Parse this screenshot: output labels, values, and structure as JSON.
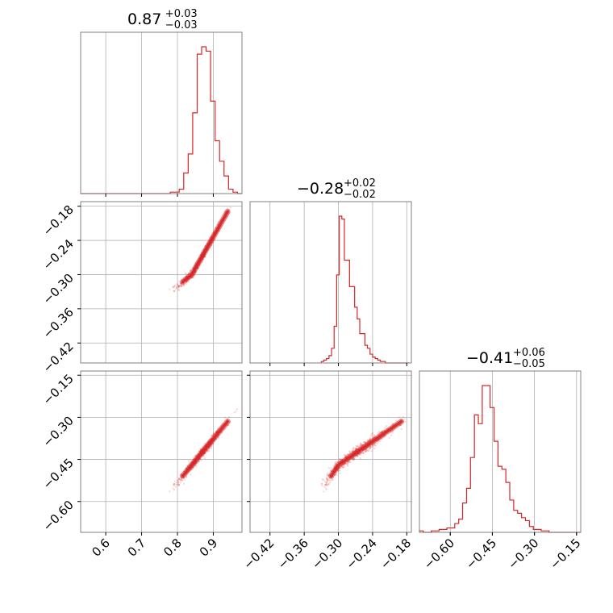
{
  "colors": {
    "series": "#d62728",
    "grid": "#b0b0b0",
    "frame": "#808080",
    "background": "#ffffff"
  },
  "chart_data": {
    "type": "corner",
    "parameters": [
      {
        "title_main": "0.87",
        "title_plus": "+0.03",
        "title_minus": "−0.03",
        "range": [
          0.53,
          0.98
        ],
        "ticks": [
          0.6,
          0.7,
          0.8,
          0.9
        ],
        "tick_labels": [
          "0.6",
          "0.7",
          "0.8",
          "0.9"
        ],
        "hist_bins": [
          0.53,
          0.5425,
          0.555,
          0.5675,
          0.58,
          0.5925,
          0.605,
          0.6175,
          0.63,
          0.6425,
          0.655,
          0.6675,
          0.68,
          0.6925,
          0.705,
          0.7175,
          0.73,
          0.7425,
          0.755,
          0.7675,
          0.78,
          0.7925,
          0.805,
          0.8175,
          0.83,
          0.8425,
          0.855,
          0.8675,
          0.88,
          0.8925,
          0.905,
          0.9175,
          0.93,
          0.9425,
          0.955,
          0.9675,
          0.98
        ],
        "hist_counts": [
          0,
          0,
          0,
          0,
          0,
          0,
          0,
          0,
          0,
          0,
          0,
          0,
          0,
          0,
          0,
          0,
          0,
          0,
          0,
          0,
          1,
          1,
          3,
          14,
          27,
          55,
          95,
          100,
          97,
          63,
          36,
          22,
          12,
          3,
          1,
          0
        ]
      },
      {
        "title_main": "−0.28",
        "title_plus": "+0.02",
        "title_minus": "−0.02",
        "range": [
          -0.455,
          -0.172
        ],
        "ticks": [
          -0.42,
          -0.36,
          -0.3,
          -0.24,
          -0.18
        ],
        "tick_labels": [
          "−0.42",
          "−0.36",
          "−0.30",
          "−0.24",
          "−0.18"
        ],
        "hist_bins": [
          -0.33,
          -0.3255,
          -0.321,
          -0.3165,
          -0.312,
          -0.3075,
          -0.303,
          -0.2985,
          -0.294,
          -0.2895,
          -0.285,
          -0.2805,
          -0.276,
          -0.2715,
          -0.267,
          -0.2625,
          -0.258,
          -0.2535,
          -0.249,
          -0.2445,
          -0.24,
          -0.2355,
          -0.231,
          -0.2265,
          -0.222,
          -0.2175,
          -0.213,
          -0.2085,
          -0.204,
          -0.1995,
          -0.195,
          -0.1905,
          -0.186,
          -0.1815,
          -0.177
        ],
        "hist_counts": [
          1,
          2,
          3,
          5,
          10,
          25,
          60,
          100,
          98,
          70,
          70,
          52,
          52,
          38,
          30,
          20,
          20,
          12,
          10,
          6,
          4,
          3,
          2,
          1,
          1,
          0,
          0,
          0,
          0,
          0,
          0,
          0,
          0,
          0
        ]
      },
      {
        "title_main": "−0.41",
        "title_plus": "+0.06",
        "title_minus": "−0.05",
        "range": [
          -0.71,
          -0.135
        ],
        "ticks": [
          -0.6,
          -0.45,
          -0.3,
          -0.15
        ],
        "tick_labels": [
          "−0.60",
          "−0.45",
          "−0.30",
          "−0.15"
        ],
        "hist_bins": [
          -0.71,
          -0.696,
          -0.682,
          -0.668,
          -0.654,
          -0.64,
          -0.626,
          -0.612,
          -0.598,
          -0.584,
          -0.57,
          -0.556,
          -0.542,
          -0.528,
          -0.514,
          -0.5,
          -0.486,
          -0.472,
          -0.458,
          -0.444,
          -0.43,
          -0.416,
          -0.402,
          -0.388,
          -0.374,
          -0.36,
          -0.346,
          -0.332,
          -0.318,
          -0.304,
          -0.29,
          -0.276,
          -0.262,
          -0.248,
          -0.234,
          -0.22,
          -0.206,
          -0.192,
          -0.178,
          -0.164,
          -0.15,
          -0.136
        ],
        "hist_counts": [
          1,
          0,
          0,
          1,
          1,
          2,
          2,
          3,
          3,
          6,
          9,
          20,
          30,
          51,
          80,
          74,
          100,
          100,
          85,
          62,
          45,
          43,
          34,
          22,
          15,
          13,
          10,
          8,
          4,
          2,
          2,
          1,
          1,
          0,
          0,
          0,
          0,
          0,
          0,
          0,
          0
        ]
      }
    ],
    "grid": true,
    "color": "#d62728"
  }
}
